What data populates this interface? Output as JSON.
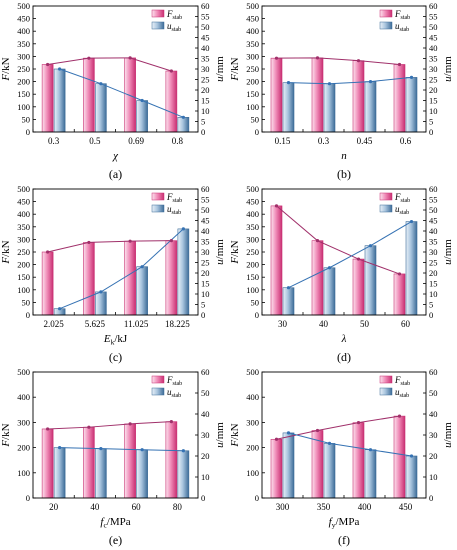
{
  "colors": {
    "F_bar_light": "#fbe3ee",
    "F_bar_dark": "#c92f72",
    "u_bar_light": "#e9f1f8",
    "u_bar_dark": "#3d6c98",
    "F_line": "#a0306a",
    "u_line": "#3572b3"
  },
  "legend": {
    "F_main": "F",
    "F_sub": "stab",
    "u_main": "u",
    "u_sub": "stab"
  },
  "chart_data": [
    {
      "type": "bar",
      "panel_label": "(a)",
      "xlabel_main": "χ",
      "xlabel_sub": "",
      "xlabel_unit": "",
      "categories": [
        "0.3",
        "0.5",
        "0.69",
        "0.8"
      ],
      "ylabel_left_main": "F",
      "ylabel_left_unit": "/kN",
      "ylabel_right_main": "u",
      "ylabel_right_unit": "/mm",
      "ylim_left": [
        0,
        500
      ],
      "ylim_right": [
        0,
        60
      ],
      "yticks_left": [
        0,
        50,
        100,
        150,
        200,
        250,
        300,
        350,
        400,
        450,
        500
      ],
      "yticks_right": [
        0,
        5,
        10,
        15,
        20,
        25,
        30,
        35,
        40,
        45,
        50,
        55,
        60
      ],
      "legend_position": "top-right",
      "series": [
        {
          "key": "F",
          "axis": "left",
          "values": [
            268,
            293,
            294,
            242
          ]
        },
        {
          "key": "u",
          "axis": "right",
          "values": [
            30,
            23,
            15,
            7
          ]
        }
      ]
    },
    {
      "type": "bar",
      "panel_label": "(b)",
      "xlabel_main": "n",
      "xlabel_sub": "",
      "xlabel_unit": "",
      "categories": [
        "0.15",
        "0.3",
        "0.45",
        "0.6"
      ],
      "ylabel_left_main": "F",
      "ylabel_left_unit": "/kN",
      "ylabel_right_main": "u",
      "ylabel_right_unit": "/mm",
      "ylim_left": [
        0,
        500
      ],
      "ylim_right": [
        0,
        60
      ],
      "yticks_left": [
        0,
        50,
        100,
        150,
        200,
        250,
        300,
        350,
        400,
        450,
        500
      ],
      "yticks_right": [
        0,
        5,
        10,
        15,
        20,
        25,
        30,
        35,
        40,
        45,
        50,
        55,
        60
      ],
      "legend_position": "top-right",
      "series": [
        {
          "key": "F",
          "axis": "left",
          "values": [
            293,
            294,
            283,
            268
          ]
        },
        {
          "key": "u",
          "axis": "right",
          "values": [
            23.5,
            23,
            24,
            26
          ]
        }
      ]
    },
    {
      "type": "bar",
      "panel_label": "(c)",
      "xlabel_main": "E",
      "xlabel_sub": "k",
      "xlabel_unit": "/kJ",
      "categories": [
        "2.025",
        "5.625",
        "11.025",
        "18.225"
      ],
      "ylabel_left_main": "F",
      "ylabel_left_unit": "/kN",
      "ylabel_right_main": "u",
      "ylabel_right_unit": "/mm",
      "ylim_left": [
        0,
        500
      ],
      "ylim_right": [
        0,
        60
      ],
      "yticks_left": [
        0,
        50,
        100,
        150,
        200,
        250,
        300,
        350,
        400,
        450,
        500
      ],
      "yticks_right": [
        0,
        5,
        10,
        15,
        20,
        25,
        30,
        35,
        40,
        45,
        50,
        55,
        60
      ],
      "legend_position": "top-right",
      "series": [
        {
          "key": "F",
          "axis": "left",
          "values": [
            250,
            288,
            293,
            295
          ]
        },
        {
          "key": "u",
          "axis": "right",
          "values": [
            3,
            11,
            23,
            41
          ]
        }
      ]
    },
    {
      "type": "bar",
      "panel_label": "(d)",
      "xlabel_main": "λ",
      "xlabel_sub": "",
      "xlabel_unit": "",
      "categories": [
        "30",
        "40",
        "50",
        "60"
      ],
      "ylabel_left_main": "F",
      "ylabel_left_unit": "/kN",
      "ylabel_right_main": "u",
      "ylabel_right_unit": "/mm",
      "ylim_left": [
        0,
        500
      ],
      "ylim_right": [
        0,
        60
      ],
      "yticks_left": [
        0,
        50,
        100,
        150,
        200,
        250,
        300,
        350,
        400,
        450,
        500
      ],
      "yticks_right": [
        0,
        5,
        10,
        15,
        20,
        25,
        30,
        35,
        40,
        45,
        50,
        55,
        60
      ],
      "legend_position": "top-right",
      "series": [
        {
          "key": "F",
          "axis": "left",
          "values": [
            433,
            295,
            222,
            163
          ]
        },
        {
          "key": "u",
          "axis": "right",
          "values": [
            13,
            22.5,
            33,
            44.5
          ]
        }
      ]
    },
    {
      "type": "bar",
      "panel_label": "(e)",
      "xlabel_main": "f",
      "xlabel_sub": "c",
      "xlabel_unit": "/MPa",
      "categories": [
        "20",
        "40",
        "60",
        "80"
      ],
      "ylabel_left_main": "F",
      "ylabel_left_unit": "/kN",
      "ylabel_right_main": "u",
      "ylabel_right_unit": "/mm",
      "ylim_left": [
        0,
        500
      ],
      "ylim_right": [
        0,
        60
      ],
      "yticks_left": [
        0,
        100,
        200,
        300,
        400,
        500
      ],
      "yticks_right": [
        0,
        10,
        20,
        30,
        40,
        50,
        60
      ],
      "legend_position": "top-right",
      "series": [
        {
          "key": "F",
          "axis": "left",
          "values": [
            274,
            281,
            294,
            303
          ]
        },
        {
          "key": "u",
          "axis": "right",
          "values": [
            24,
            23.5,
            23,
            22.5
          ]
        }
      ]
    },
    {
      "type": "bar",
      "panel_label": "(f)",
      "xlabel_main": "f",
      "xlabel_sub": "y",
      "xlabel_unit": "/MPa",
      "categories": [
        "300",
        "350",
        "400",
        "450"
      ],
      "ylabel_left_main": "F",
      "ylabel_left_unit": "/kN",
      "ylabel_right_main": "u",
      "ylabel_right_unit": "/mm",
      "ylim_left": [
        0,
        500
      ],
      "ylim_right": [
        0,
        60
      ],
      "yticks_left": [
        0,
        100,
        200,
        300,
        400,
        500
      ],
      "yticks_right": [
        0,
        10,
        20,
        30,
        40,
        50,
        60
      ],
      "legend_position": "top-right",
      "series": [
        {
          "key": "F",
          "axis": "left",
          "values": [
            233,
            268,
            299,
            325
          ]
        },
        {
          "key": "u",
          "axis": "right",
          "values": [
            31,
            26,
            23,
            20
          ]
        }
      ]
    }
  ]
}
